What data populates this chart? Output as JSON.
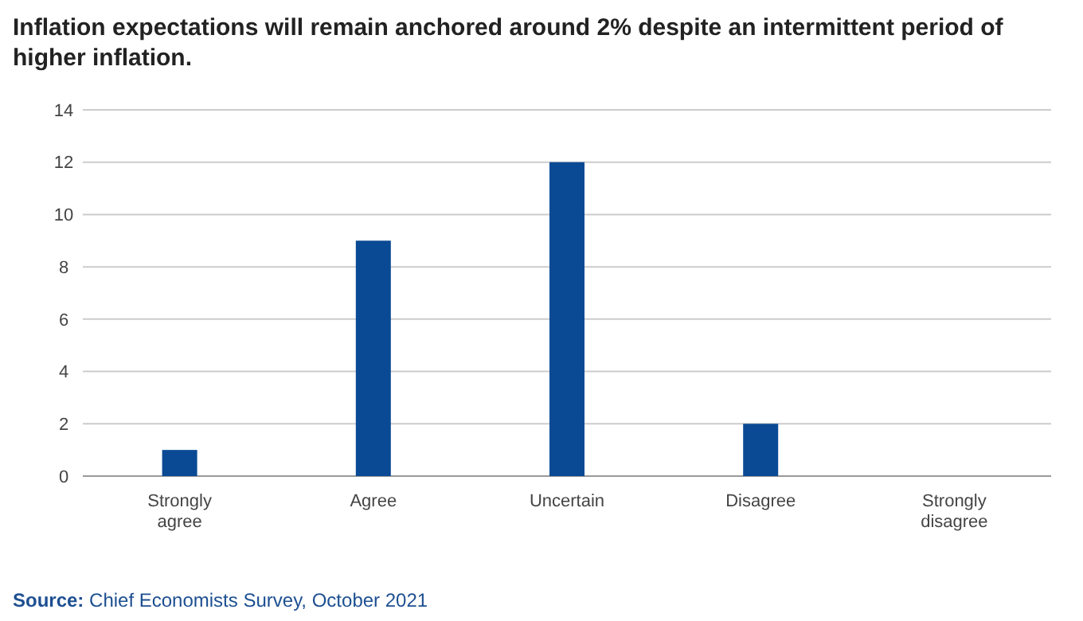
{
  "chart_data": {
    "type": "bar",
    "title": "Inflation expectations will remain anchored around 2% despite an intermittent period of higher inflation.",
    "categories": [
      "Strongly agree",
      "Agree",
      "Uncertain",
      "Disagree",
      "Strongly disagree"
    ],
    "values": [
      1,
      9,
      12,
      2,
      0
    ],
    "color": "#0a4a94",
    "ylim": [
      0,
      14
    ],
    "yticks": [
      0,
      2,
      4,
      6,
      8,
      10,
      12,
      14
    ],
    "grid": "y",
    "annotations": [
      "Source: Chief Economists Survey, October 2021"
    ]
  }
}
